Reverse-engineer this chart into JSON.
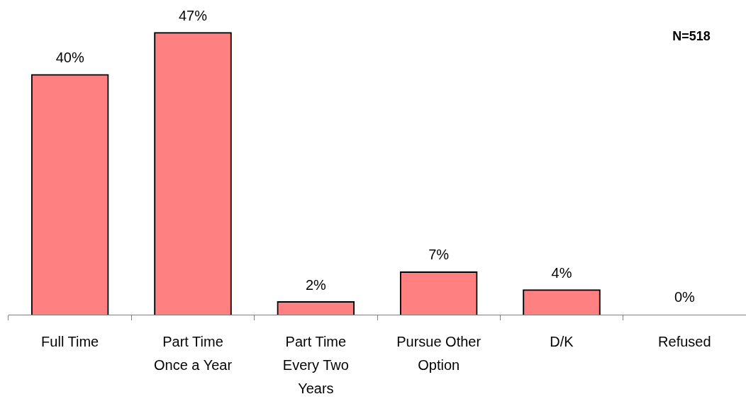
{
  "chart_data": {
    "type": "bar",
    "categories": [
      "Full Time",
      "Part Time Once a Year",
      "Part Time Every Two Years",
      "Pursue Other Option",
      "D/K",
      "Refused"
    ],
    "values": [
      40,
      47,
      2,
      7,
      4,
      0
    ],
    "value_labels": [
      "40%",
      "47%",
      "2%",
      "7%",
      "4%",
      "0%"
    ],
    "color": "#ff8080",
    "tick_labels": "x",
    "annotations": [
      "N=518"
    ]
  }
}
